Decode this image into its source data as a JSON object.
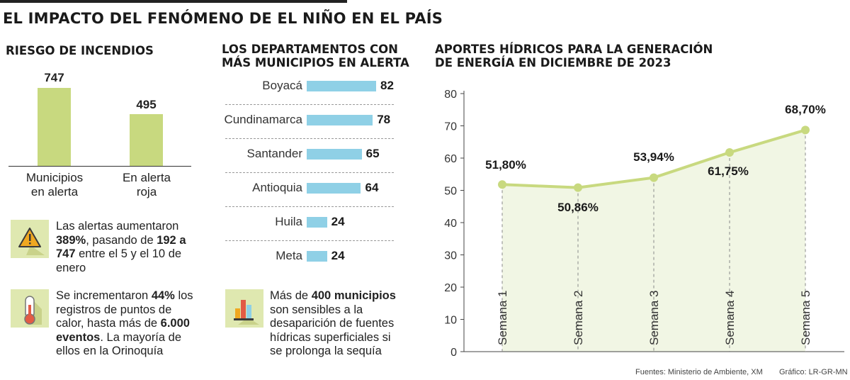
{
  "title": "EL IMPACTO DEL FENÓMENO DE EL NIÑO EN EL PAÍS",
  "fire_risk": {
    "title": "RIESGO DE INCENDIOS",
    "note1": {
      "icon": "warning-triangle-icon",
      "text1": "Las alertas aumentaron ",
      "bold1": "389%",
      "text2": ", pasando de ",
      "bold2": "192 a 747",
      "text3": " entre el 5 y el 10 de enero"
    },
    "note2": {
      "icon": "thermometer-icon",
      "text1": "Se incrementaron ",
      "bold1": "44%",
      "text2": " los registros de puntos de calor, hasta más de ",
      "bold2": "6.000 eventos",
      "text3": ". La mayoría de ellos en la Orinoquía"
    }
  },
  "departments": {
    "title_line1": "LOS DEPARTAMENTOS CON",
    "title_line2": "MÁS MUNICIPIOS EN ALERTA",
    "note": {
      "icon": "bar-chart-icon",
      "text1": "Más de ",
      "bold1": "400 municipios",
      "text2": " son sensibles a la desaparición de fuentes hídricas superficiales si se prolonga la sequía"
    }
  },
  "hydro": {
    "title_line1": "APORTES HÍDRICOS PARA LA GENERACIÓN",
    "title_line2": "DE ENERGÍA EN DICIEMBRE DE 2023"
  },
  "footer": {
    "sources": "Fuentes: Ministerio de Ambiente, XM",
    "credit": "Gráfico: LR-GR-MN"
  },
  "colors": {
    "green_bar": "#c8d97f",
    "blue_bar": "#8fd0e6",
    "line": "#c8d97f",
    "area": "#f1f6e4",
    "icon_bg": "#dfe8b0"
  },
  "chart_data": [
    {
      "type": "bar",
      "categories": [
        "Municipios en alerta",
        "En alerta roja"
      ],
      "category_lines": [
        [
          "Municipios",
          "en alerta"
        ],
        [
          "En alerta",
          "roja"
        ]
      ],
      "values": [
        747,
        495
      ],
      "value_labels": [
        "747",
        "495"
      ]
    },
    {
      "type": "bar",
      "orientation": "horizontal",
      "categories": [
        "Boyacá",
        "Cundinamarca",
        "Santander",
        "Antioquia",
        "Huila",
        "Meta"
      ],
      "values": [
        82,
        78,
        65,
        64,
        24,
        24
      ],
      "value_labels": [
        "82",
        "78",
        "65",
        "64",
        "24",
        "24"
      ]
    },
    {
      "type": "line",
      "x": [
        "Semana 1",
        "Semana 2",
        "Semana 3",
        "Semana 4",
        "Semana 5"
      ],
      "values": [
        51.8,
        50.86,
        53.94,
        61.75,
        68.7
      ],
      "value_labels": [
        "51,80%",
        "50,86%",
        "53,94%",
        "61,75%",
        "68,70%"
      ],
      "ylim": [
        0,
        80
      ],
      "yticks": [
        "0",
        "10",
        "20",
        "30",
        "40",
        "50",
        "60",
        "70",
        "80"
      ],
      "grid": false,
      "area_fill": true
    }
  ]
}
